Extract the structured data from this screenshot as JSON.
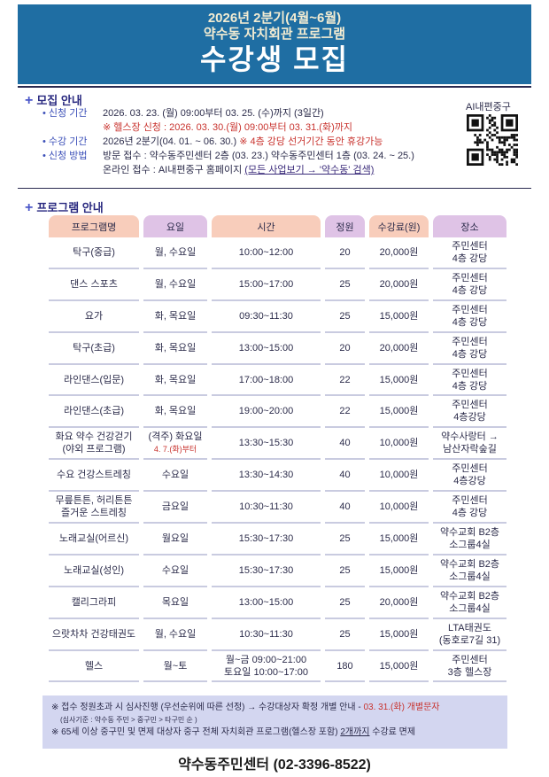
{
  "banner": {
    "line1": "2026년 2분기(4월~6월)",
    "line2": "약수동 자치회관 프로그램",
    "title": "수강생 모집"
  },
  "recruit": {
    "heading": "모집 안내",
    "period_label": "• 신청 기간",
    "period": "2026. 03. 23. (월) 09:00부터 03. 25. (수)까지 (3일간)",
    "gym_note": "※ 헬스장 신청 : 2026. 03. 30.(월) 09:00부터 03. 31.(화)까지",
    "course_label": "• 수강 기간",
    "course": "2026년 2분기(04. 01. ~ 06. 30.)",
    "course_note": "※ 4층 강당 선거기간 동안 휴강가능",
    "method_label": "• 신청 방법",
    "visit": "방문  접수   :  약수동주민센터 2층 (03. 23.) 약수동주민센터 1층 (03. 24. ~ 25.)",
    "online_prefix": "온라인 접수 :  AI내편중구 홈페이지 ",
    "online_link": "(모든 사업보기 → '약수동' 검색)",
    "qr_label": "AI내편중구"
  },
  "program": {
    "heading": "프로그램 안내",
    "headers": [
      "프로그램명",
      "요일",
      "시간",
      "정원",
      "수강료(원)",
      "장소"
    ],
    "rows": [
      [
        "탁구(중급)",
        "월, 수요일",
        "10:00~12:00",
        "20",
        "20,000원",
        "주민센터\n4층 강당"
      ],
      [
        "댄스 스포츠",
        "월, 수요일",
        "15:00~17:00",
        "25",
        "20,000원",
        "주민센터\n4층 강당"
      ],
      [
        "요가",
        "화, 목요일",
        "09:30~11:30",
        "25",
        "15,000원",
        "주민센터\n4층 강당"
      ],
      [
        "탁구(초급)",
        "화, 목요일",
        "13:00~15:00",
        "20",
        "20,000원",
        "주민센터\n4층 강당"
      ],
      [
        "라인댄스(입문)",
        "화, 목요일",
        "17:00~18:00",
        "22",
        "15,000원",
        "주민센터\n4층 강당"
      ],
      [
        "라인댄스(초급)",
        "화, 목요일",
        "19:00~20:00",
        "22",
        "15,000원",
        "주민센터\n4층강당"
      ],
      [
        "화요 약수 건강걷기\n(야외 프로그램)",
        "(격주) 화요일",
        "13:30~15:30",
        "40",
        "10,000원",
        "약수사랑터 →\n남산자락숲길"
      ],
      [
        "수요 건강스트레칭",
        "수요일",
        "13:30~14:30",
        "40",
        "10,000원",
        "주민센터\n4층강당"
      ],
      [
        "무릎튼튼, 허리튼튼\n즐거운 스트레칭",
        "금요일",
        "10:30~11:30",
        "40",
        "10,000원",
        "주민센터\n4층 강당"
      ],
      [
        "노래교실(어르신)",
        "월요일",
        "15:30~17:30",
        "25",
        "15,000원",
        "약수교회 B2층\n소그룹4실"
      ],
      [
        "노래교실(성인)",
        "수요일",
        "15:30~17:30",
        "25",
        "15,000원",
        "약수교회 B2층\n소그룹4실"
      ],
      [
        "캘리그라피",
        "목요일",
        "13:00~15:00",
        "25",
        "20,000원",
        "약수교회 B2층\n소그룹4실"
      ],
      [
        "으랏차차 건강태권도",
        "월, 수요일",
        "10:30~11:30",
        "25",
        "15,000원",
        "LTA태권도\n(동호로7길 31)"
      ],
      [
        "헬스",
        "월~토",
        "월~금  09:00~21:00\n토요일 10:00~17:00",
        "180",
        "15,000원",
        "주민센터\n3층 헬스장"
      ]
    ],
    "walk_start_note": "4. 7.(화)부터"
  },
  "notes": {
    "line1": "※ 접수 정원초과 시 심사진행 (우선순위에 따른 선정) → 수강대상자 확정 개별 안내 - ",
    "line1_red": "03. 31.(화) 개별문자",
    "line2": "(심사기준 : 약수동 주민 > 중구민 > 타구민 순 )",
    "line3_a": "※ 65세 이상 중구민 및 면제 대상자 중구 전체 자치회관 프로그램(헬스장 포함) ",
    "line3_u": "2개까지",
    "line3_b": " 수강료 면제"
  },
  "footer": {
    "phone": "약수동주민센터 (02-3396-8522)"
  },
  "colors": {
    "banner": "#1f6ea3",
    "header_orange": "#f8cdbb",
    "header_purple": "#dfc3e6",
    "note_bg": "#d3d6f0",
    "red": "#c8322d"
  }
}
